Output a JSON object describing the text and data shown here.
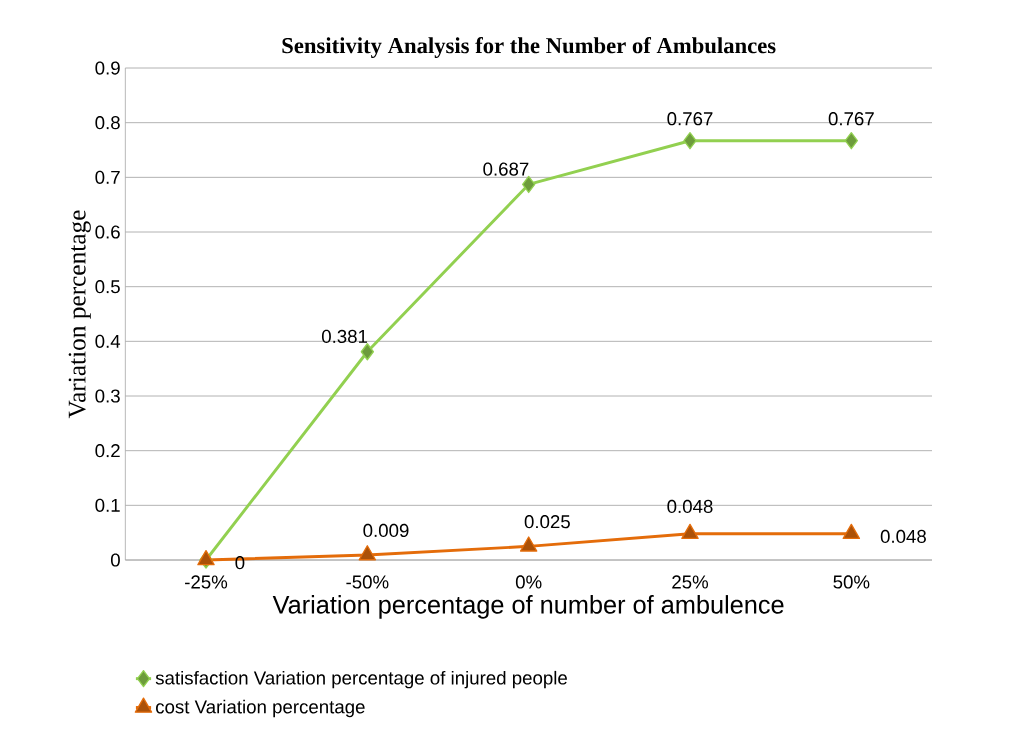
{
  "chart_data": {
    "type": "line",
    "title": "Sensitivity Analysis for the Number of Ambulances",
    "xlabel": "Variation percentage of number of ambulence",
    "ylabel": "Variation percentage",
    "categories": [
      "-25%",
      "-50%",
      "0%",
      "25%",
      "50%"
    ],
    "series": [
      {
        "name": "satisfaction Variation percentage of injured people",
        "color": "#92d050",
        "marker": "diamond",
        "values": [
          0,
          0.381,
          0.687,
          0.767,
          0.767
        ],
        "value_labels": [
          null,
          "0.381",
          "0.687",
          "0.767",
          "0.767"
        ]
      },
      {
        "name": "cost Variation percentage",
        "color": "#e46c0a",
        "marker": "triangle",
        "values": [
          0,
          0.009,
          0.025,
          0.048,
          0.048
        ],
        "value_labels": [
          "0",
          "0.009",
          "0.025",
          "0.048",
          "0.048"
        ]
      }
    ],
    "ylim": [
      0,
      0.9
    ],
    "yticks": [
      0,
      0.1,
      0.2,
      0.3,
      0.4,
      0.5,
      0.6,
      0.7,
      0.8,
      0.9
    ],
    "grid": "y",
    "legend": "bottom",
    "line_style": "solid"
  }
}
